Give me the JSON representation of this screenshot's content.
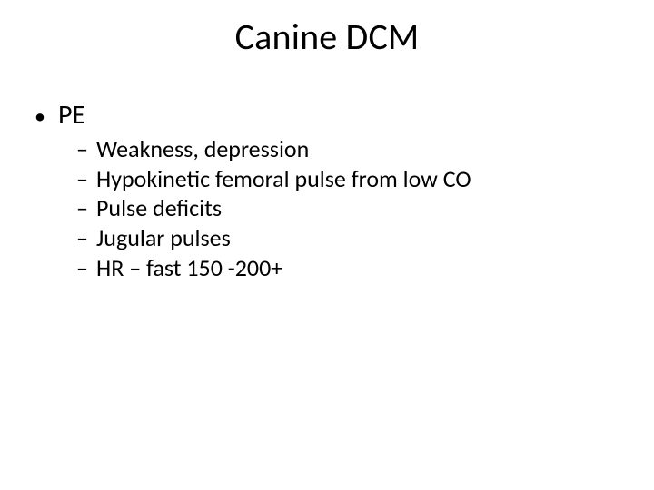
{
  "slide": {
    "title": "Canine DCM",
    "colors": {
      "background": "#ffffff",
      "text": "#000000"
    },
    "typography": {
      "title_fontsize_pt": 40,
      "lvl1_fontsize_pt": 30,
      "lvl2_fontsize_pt": 26,
      "font_family": "Calibri"
    },
    "bullets": {
      "lvl1_marker": "•",
      "lvl2_marker": "–"
    },
    "content": {
      "lvl1": "PE",
      "lvl2": [
        "Weakness, depression",
        "Hypokinetic femoral pulse from low CO",
        "Pulse deficits",
        "Jugular pulses",
        "HR – fast 150 -200+"
      ]
    }
  }
}
